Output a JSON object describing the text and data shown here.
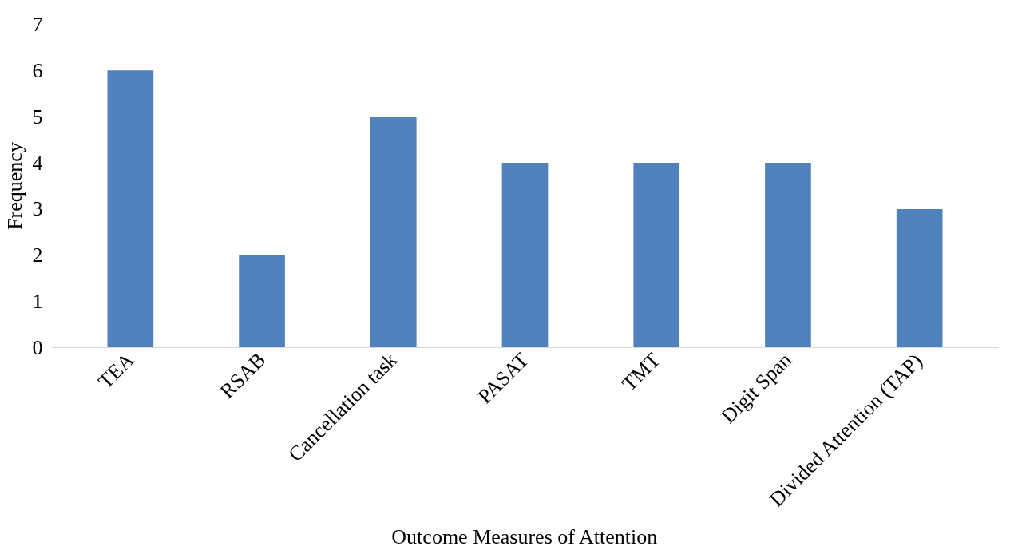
{
  "chart_data": {
    "type": "bar",
    "xlabel": "Outcome Measures of Attention",
    "ylabel": "Frequency",
    "categories": [
      "TEA",
      "RSAB",
      "Cancellation task",
      "PASAT",
      "TMT",
      "Digit Span",
      "Divided Attention (TAP)"
    ],
    "values": [
      6,
      2,
      5,
      4,
      4,
      4,
      3
    ],
    "color": "#4f81bd",
    "ylim": [
      0,
      7
    ],
    "yticks": [
      0,
      1,
      2,
      3,
      4,
      5,
      6,
      7
    ],
    "grid": false
  }
}
